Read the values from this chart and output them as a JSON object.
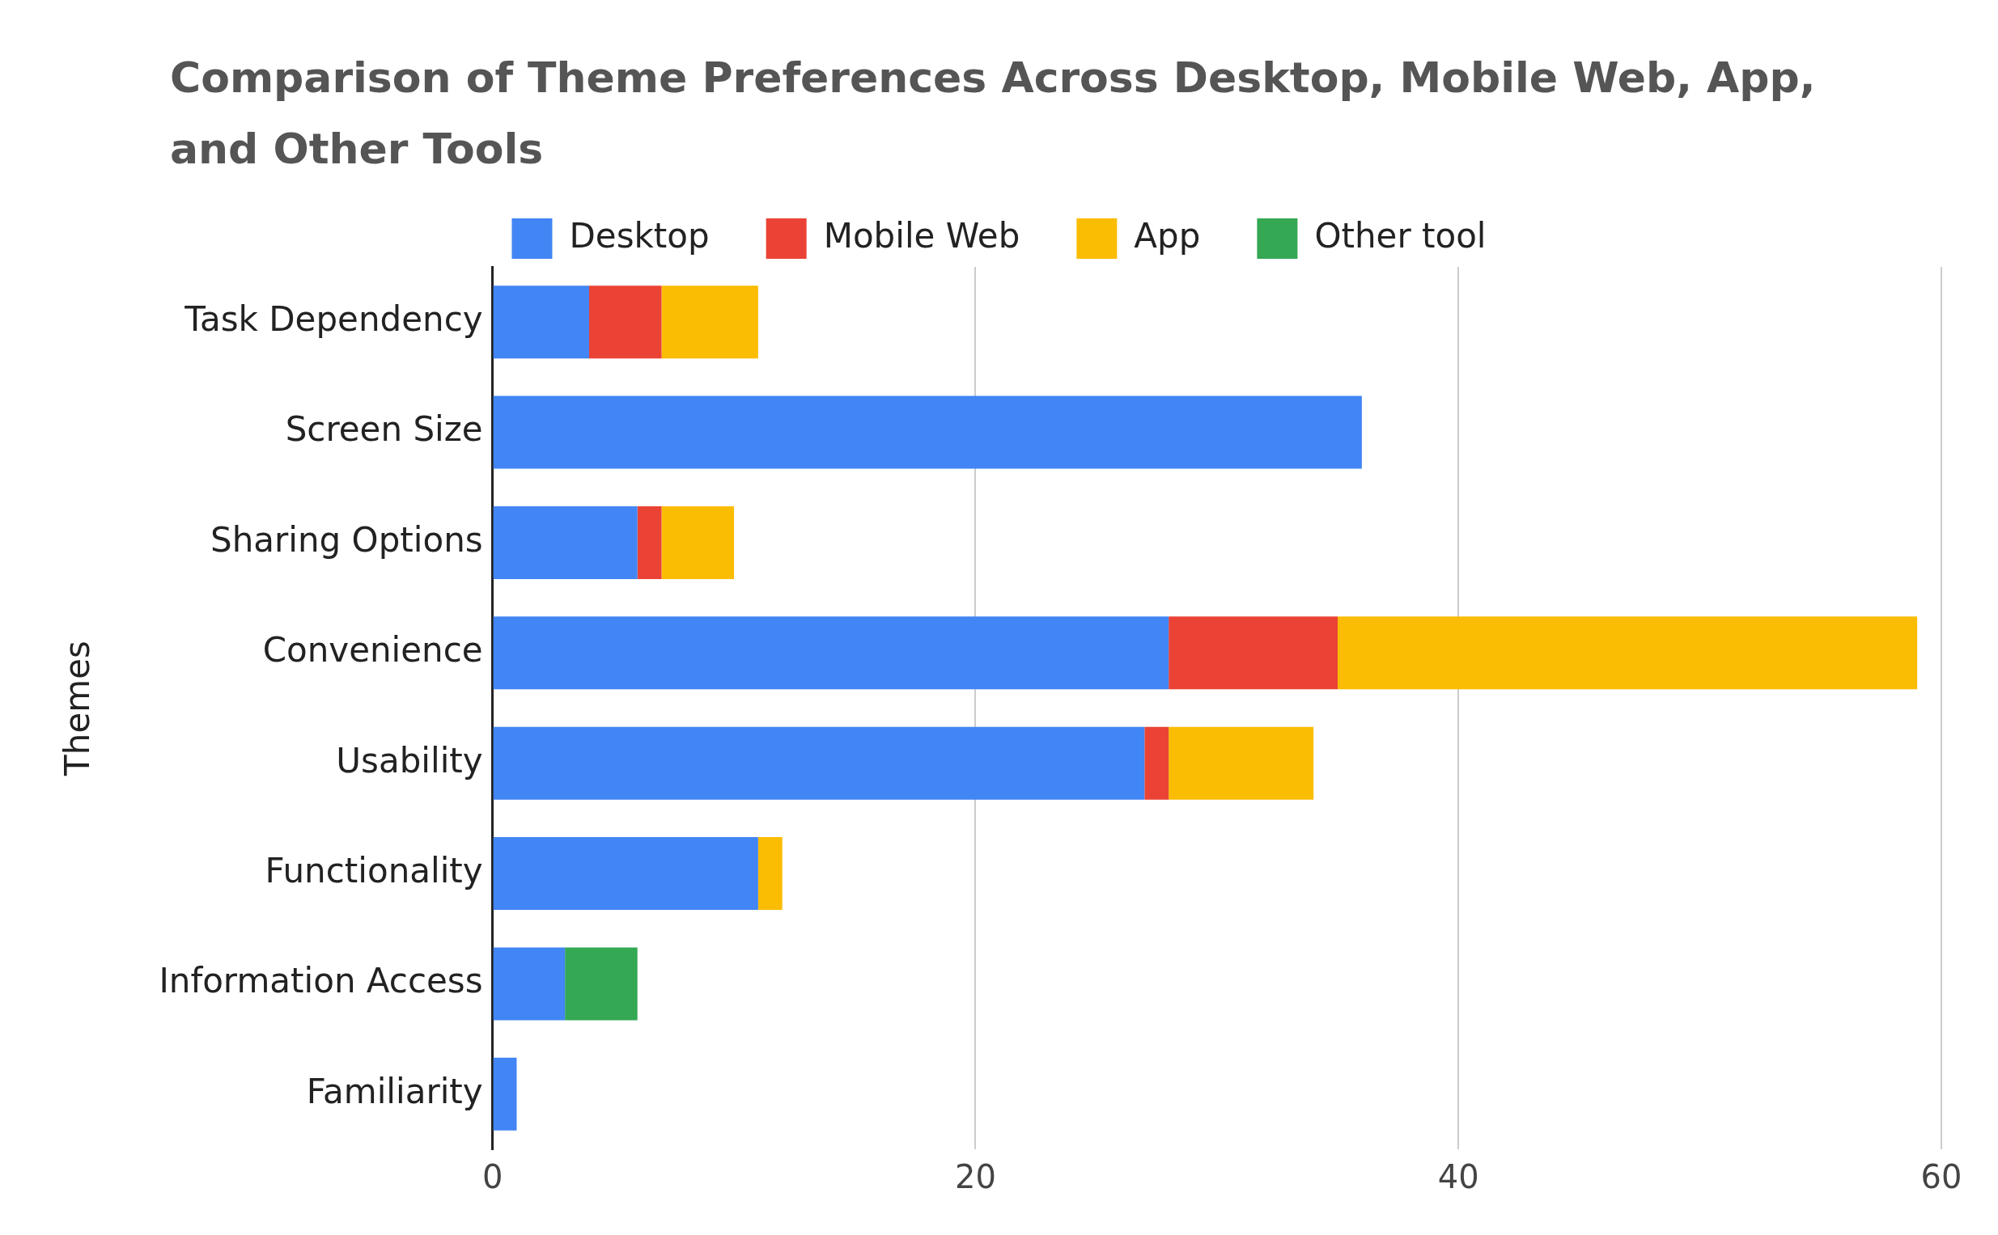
{
  "chart_data": {
    "type": "bar",
    "orientation": "horizontal",
    "stacked": true,
    "title": "Comparison of Theme Preferences Across Desktop, Mobile Web, App, and Other Tools",
    "ylabel": "Themes",
    "categories": [
      "Task Dependency",
      "Screen Size",
      "Sharing Options",
      "Convenience",
      "Usability",
      "Functionality",
      "Information Access",
      "Familiarity"
    ],
    "series": [
      {
        "name": "Desktop",
        "color": "#4285f4",
        "values": [
          4,
          36,
          6,
          28,
          27,
          11,
          3,
          1
        ]
      },
      {
        "name": "Mobile Web",
        "color": "#ea4335",
        "values": [
          3,
          null,
          1,
          7,
          1,
          null,
          null,
          null
        ]
      },
      {
        "name": "App",
        "color": "#fbbc04",
        "values": [
          4,
          null,
          3,
          24,
          6,
          1,
          null,
          null
        ]
      },
      {
        "name": "Other tool",
        "color": "#34a853",
        "values": [
          null,
          null,
          null,
          null,
          null,
          null,
          3,
          null
        ]
      }
    ],
    "xlim": [
      0,
      60
    ],
    "xticks": [
      0,
      20,
      40,
      60
    ],
    "grid": "x",
    "legend": "top"
  }
}
